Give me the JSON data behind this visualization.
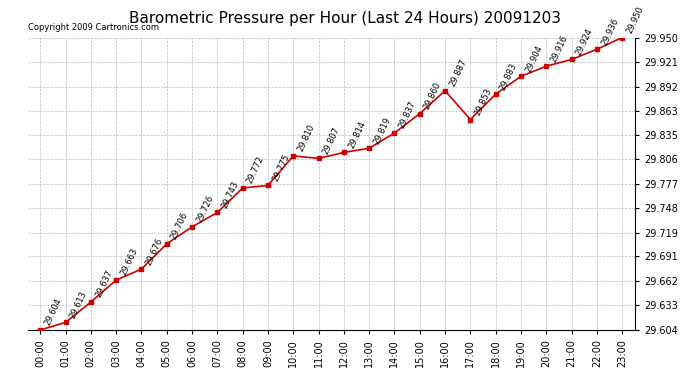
{
  "title": "Barometric Pressure per Hour (Last 24 Hours) 20091203",
  "copyright": "Copyright 2009 Cartronics.com",
  "hours": [
    "00:00",
    "01:00",
    "02:00",
    "03:00",
    "04:00",
    "05:00",
    "06:00",
    "07:00",
    "08:00",
    "09:00",
    "10:00",
    "11:00",
    "12:00",
    "13:00",
    "14:00",
    "15:00",
    "16:00",
    "17:00",
    "18:00",
    "19:00",
    "20:00",
    "21:00",
    "22:00",
    "23:00"
  ],
  "values": [
    29.604,
    29.613,
    29.637,
    29.663,
    29.676,
    29.706,
    29.726,
    29.743,
    29.772,
    29.775,
    29.81,
    29.807,
    29.814,
    29.819,
    29.837,
    29.86,
    29.887,
    29.853,
    29.883,
    29.904,
    29.916,
    29.924,
    29.936,
    29.95
  ],
  "ylim_min": 29.604,
  "ylim_max": 29.95,
  "yticks": [
    29.604,
    29.633,
    29.662,
    29.691,
    29.719,
    29.748,
    29.777,
    29.806,
    29.835,
    29.863,
    29.892,
    29.921,
    29.95
  ],
  "line_color": "#CC0000",
  "background_color": "#ffffff",
  "grid_color": "#bbbbbb",
  "title_fontsize": 11,
  "label_fontsize": 7,
  "annotation_fontsize": 6,
  "annotation_rotation": 65,
  "copyright_fontsize": 6
}
